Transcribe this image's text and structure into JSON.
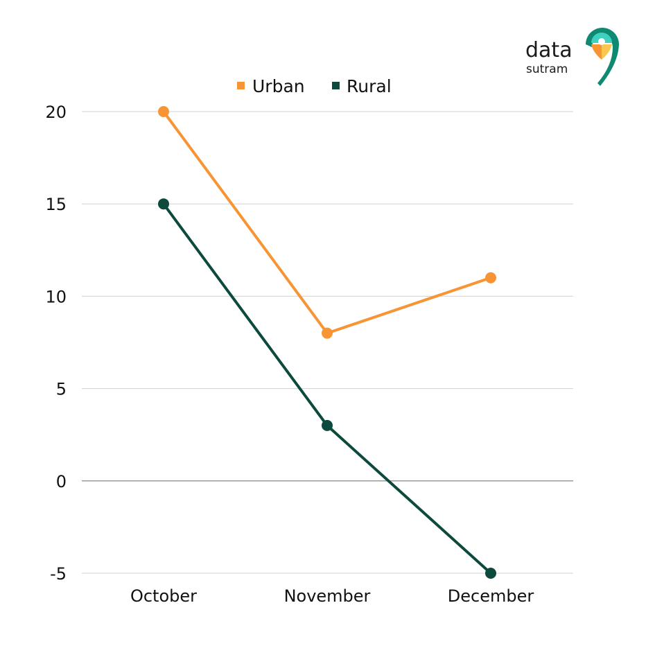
{
  "brand": {
    "name": "data",
    "tagline": "sutram",
    "colors": {
      "teal": "#0f8a72",
      "light_teal": "#3fd1c0",
      "orange": "#f79433",
      "yellow": "#f9c74f"
    }
  },
  "chart_data": {
    "type": "line",
    "categories": [
      "October",
      "November",
      "December"
    ],
    "series": [
      {
        "name": "Urban",
        "values": [
          20,
          8,
          11
        ],
        "color": "#f79433"
      },
      {
        "name": "Rural",
        "values": [
          15,
          3,
          -5
        ],
        "color": "#0c4a3d"
      }
    ],
    "title": "",
    "xlabel": "",
    "ylabel": "",
    "ylim": [
      -5,
      20
    ],
    "yticks": [
      20,
      15,
      10,
      5,
      0,
      -5
    ],
    "grid": true,
    "legend": "top-center",
    "gridline_color": "#d0d0d0",
    "zero_line_color": "#9a9a9a"
  }
}
